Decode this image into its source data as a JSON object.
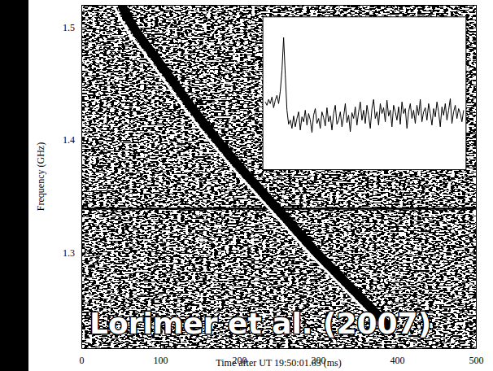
{
  "chart_data": {
    "type": "line",
    "x_label": "Time after UT 19:50:01.63 (ms)",
    "y_label": "Frequency (GHz)",
    "annotation": "Lorimer et al. (2007)",
    "xlim": [
      0,
      500
    ],
    "xticks": [
      0,
      100,
      200,
      300,
      400,
      500
    ],
    "ylim": [
      1.215,
      1.52
    ],
    "yticks": [
      1.3,
      1.4,
      1.5
    ],
    "series": [
      {
        "color": "#000000",
        "x": [
          51,
          66,
          92,
          118,
          144,
          172,
          202,
          234,
          266,
          298,
          333,
          368,
          395
        ],
        "values": [
          1.52,
          1.5,
          1.475,
          1.45,
          1.425,
          1.4,
          1.375,
          1.35,
          1.325,
          1.3,
          1.275,
          1.25,
          1.23
        ]
      }
    ],
    "horizontal_lines": [
      1.339
    ],
    "inset": {
      "tick_labels": false,
      "ylim": [
        -0.6,
        1.25
      ],
      "values": [
        0.22,
        0.18,
        0.25,
        0.2,
        0.28,
        0.15,
        0.24,
        0.3,
        0.2,
        0.35,
        0.6,
        1.0,
        0.55,
        0.12,
        -0.05,
        0.0,
        -0.1,
        0.05,
        -0.08,
        0.02,
        0.1,
        -0.12,
        0.04,
        -0.02,
        0.12,
        -0.06,
        0.08,
        0.0,
        -0.15,
        0.06,
        0.14,
        -0.04,
        0.02,
        -0.1,
        0.1,
        0.03,
        -0.07,
        0.15,
        -0.02,
        0.05,
        -0.12,
        0.08,
        0.18,
        -0.05,
        0.0,
        0.1,
        -0.08,
        0.04,
        0.2,
        -0.03,
        0.06,
        -0.14,
        0.09,
        0.02,
        0.16,
        -0.06,
        0.1,
        0.22,
        0.0,
        0.12,
        -0.04,
        0.18,
        0.06,
        -0.1,
        0.14,
        0.25,
        0.02,
        0.1,
        -0.06,
        0.2,
        0.08,
        0.15,
        -0.02,
        0.24,
        0.05,
        0.12,
        -0.08,
        0.18,
        0.1,
        0.0,
        0.16,
        -0.05,
        0.22,
        0.08,
        0.14,
        -0.1,
        0.1,
        0.2,
        0.02,
        0.12,
        -0.04,
        0.18,
        0.06,
        0.25,
        -0.02,
        0.1,
        0.15,
        0.0,
        0.2,
        0.08,
        -0.06,
        0.14,
        0.04,
        0.22,
        0.1,
        -0.08,
        0.16,
        0.06,
        0.2,
        0.0,
        0.12,
        0.26,
        -0.04,
        0.1,
        0.18,
        0.02,
        0.14,
        0.08,
        -0.02,
        0.12
      ]
    }
  }
}
